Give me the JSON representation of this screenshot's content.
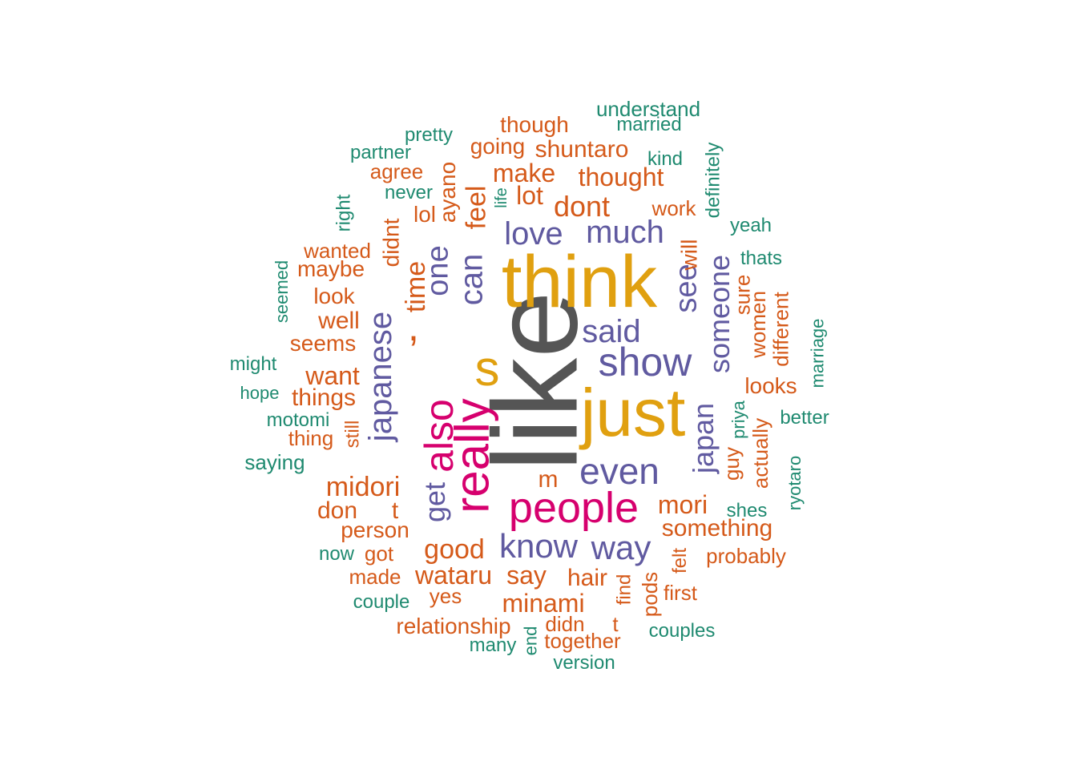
{
  "palette": {
    "gray": "#555555",
    "gold": "#E0A010",
    "magenta": "#D6006E",
    "purple": "#605AA0",
    "orange": "#D55A1A",
    "teal": "#1F8A70"
  },
  "words": [
    {
      "text": "like",
      "color": "gray"
    },
    {
      "text": "think",
      "color": "gold"
    },
    {
      "text": "just",
      "color": "gold"
    },
    {
      "text": "s",
      "color": "gold"
    },
    {
      "text": "people",
      "color": "magenta"
    },
    {
      "text": "really",
      "color": "magenta"
    },
    {
      "text": "also",
      "color": "magenta"
    },
    {
      "text": ",",
      "color": "orange"
    },
    {
      "text": "show",
      "color": "purple"
    },
    {
      "text": "even",
      "color": "purple"
    },
    {
      "text": "know",
      "color": "purple"
    },
    {
      "text": "way",
      "color": "purple"
    },
    {
      "text": "said",
      "color": "purple"
    },
    {
      "text": "much",
      "color": "purple"
    },
    {
      "text": "love",
      "color": "purple"
    },
    {
      "text": "japanese",
      "color": "purple"
    },
    {
      "text": "can",
      "color": "purple"
    },
    {
      "text": "one",
      "color": "purple"
    },
    {
      "text": "see",
      "color": "purple"
    },
    {
      "text": "someone",
      "color": "purple"
    },
    {
      "text": "japan",
      "color": "purple"
    },
    {
      "text": "get",
      "color": "purple"
    },
    {
      "text": "feel",
      "color": "orange"
    },
    {
      "text": "time",
      "color": "orange"
    },
    {
      "text": "dont",
      "color": "orange"
    },
    {
      "text": "lot",
      "color": "orange"
    },
    {
      "text": "make",
      "color": "orange"
    },
    {
      "text": "thought",
      "color": "orange"
    },
    {
      "text": "shuntaro",
      "color": "orange"
    },
    {
      "text": "going",
      "color": "orange"
    },
    {
      "text": "though",
      "color": "orange"
    },
    {
      "text": "good",
      "color": "orange"
    },
    {
      "text": "mori",
      "color": "orange"
    },
    {
      "text": "something",
      "color": "orange"
    },
    {
      "text": "midori",
      "color": "orange"
    },
    {
      "text": "wataru",
      "color": "orange"
    },
    {
      "text": "say",
      "color": "orange"
    },
    {
      "text": "hair",
      "color": "orange"
    },
    {
      "text": "minami",
      "color": "orange"
    },
    {
      "text": "want",
      "color": "orange"
    },
    {
      "text": "things",
      "color": "orange"
    },
    {
      "text": "well",
      "color": "orange"
    },
    {
      "text": "seems",
      "color": "orange"
    },
    {
      "text": "look",
      "color": "orange"
    },
    {
      "text": "maybe",
      "color": "orange"
    },
    {
      "text": "wanted",
      "color": "orange"
    },
    {
      "text": "agree",
      "color": "orange"
    },
    {
      "text": "lol",
      "color": "orange"
    },
    {
      "text": "ayano",
      "color": "orange"
    },
    {
      "text": "didnt",
      "color": "orange"
    },
    {
      "text": "will",
      "color": "orange"
    },
    {
      "text": "work",
      "color": "orange"
    },
    {
      "text": "looks",
      "color": "orange"
    },
    {
      "text": "sure",
      "color": "orange"
    },
    {
      "text": "women",
      "color": "orange"
    },
    {
      "text": "different",
      "color": "orange"
    },
    {
      "text": "actually",
      "color": "orange"
    },
    {
      "text": "guy",
      "color": "orange"
    },
    {
      "text": "probably",
      "color": "orange"
    },
    {
      "text": "felt",
      "color": "orange"
    },
    {
      "text": "first",
      "color": "orange"
    },
    {
      "text": "pods",
      "color": "orange"
    },
    {
      "text": "find",
      "color": "orange"
    },
    {
      "text": "m",
      "color": "orange"
    },
    {
      "text": "don",
      "color": "orange"
    },
    {
      "text": "t",
      "color": "orange"
    },
    {
      "text": "person",
      "color": "orange"
    },
    {
      "text": "got",
      "color": "orange"
    },
    {
      "text": "made",
      "color": "orange"
    },
    {
      "text": "yes",
      "color": "orange"
    },
    {
      "text": "relationship",
      "color": "orange"
    },
    {
      "text": "didn",
      "color": "orange"
    },
    {
      "text": "t",
      "color": "orange"
    },
    {
      "text": "together",
      "color": "orange"
    },
    {
      "text": "thing",
      "color": "orange"
    },
    {
      "text": "still",
      "color": "orange"
    },
    {
      "text": "understand",
      "color": "teal"
    },
    {
      "text": "married",
      "color": "teal"
    },
    {
      "text": "pretty",
      "color": "teal"
    },
    {
      "text": "partner",
      "color": "teal"
    },
    {
      "text": "never",
      "color": "teal"
    },
    {
      "text": "kind",
      "color": "teal"
    },
    {
      "text": "definitely",
      "color": "teal"
    },
    {
      "text": "yeah",
      "color": "teal"
    },
    {
      "text": "thats",
      "color": "teal"
    },
    {
      "text": "right",
      "color": "teal"
    },
    {
      "text": "life",
      "color": "teal"
    },
    {
      "text": "seemed",
      "color": "teal"
    },
    {
      "text": "might",
      "color": "teal"
    },
    {
      "text": "hope",
      "color": "teal"
    },
    {
      "text": "motomi",
      "color": "teal"
    },
    {
      "text": "saying",
      "color": "teal"
    },
    {
      "text": "marriage",
      "color": "teal"
    },
    {
      "text": "better",
      "color": "teal"
    },
    {
      "text": "priya",
      "color": "teal"
    },
    {
      "text": "ryotaro",
      "color": "teal"
    },
    {
      "text": "shes",
      "color": "teal"
    },
    {
      "text": "now",
      "color": "teal"
    },
    {
      "text": "couple",
      "color": "teal"
    },
    {
      "text": "couples",
      "color": "teal"
    },
    {
      "text": "many",
      "color": "teal"
    },
    {
      "text": "end",
      "color": "teal"
    },
    {
      "text": "version",
      "color": "teal"
    }
  ]
}
